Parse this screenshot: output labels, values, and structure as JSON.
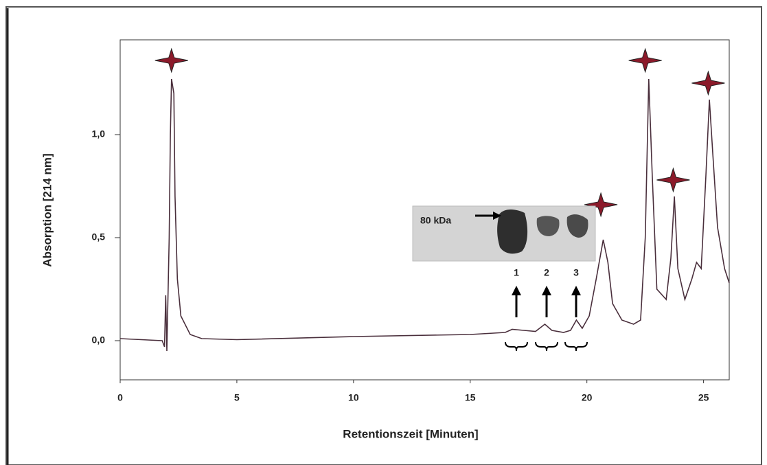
{
  "chart_data": {
    "type": "line",
    "x_label": "Retentionszeit [Minuten]",
    "y_label": "Absorption [214 nm]",
    "x": [
      0,
      1.8,
      1.9,
      1.95,
      2.0,
      2.1,
      2.15,
      2.2,
      2.3,
      2.35,
      2.45,
      2.6,
      3.0,
      3.5,
      5,
      10,
      15,
      16.5,
      16.8,
      17.3,
      17.8,
      18.2,
      18.5,
      19.0,
      19.3,
      19.55,
      19.8,
      20.1,
      20.4,
      20.7,
      20.9,
      21.1,
      21.5,
      22.0,
      22.3,
      22.5,
      22.65,
      22.8,
      23.0,
      23.4,
      23.6,
      23.75,
      23.9,
      24.2,
      24.5,
      24.7,
      24.9,
      25.1,
      25.25,
      25.4,
      25.6,
      25.9,
      26.1
    ],
    "values": [
      0.01,
      0.0,
      -0.03,
      0.22,
      -0.05,
      0.5,
      1.0,
      1.27,
      1.2,
      0.7,
      0.3,
      0.12,
      0.03,
      0.01,
      0.005,
      0.02,
      0.03,
      0.04,
      0.055,
      0.05,
      0.045,
      0.08,
      0.05,
      0.04,
      0.05,
      0.1,
      0.06,
      0.12,
      0.3,
      0.49,
      0.38,
      0.18,
      0.1,
      0.08,
      0.1,
      0.5,
      1.27,
      0.8,
      0.25,
      0.2,
      0.4,
      0.7,
      0.35,
      0.2,
      0.3,
      0.38,
      0.35,
      0.8,
      1.17,
      0.9,
      0.55,
      0.35,
      0.28
    ],
    "color": "#4a2f3c",
    "xlim": [
      0,
      26.1
    ],
    "ylim": [
      -0.19,
      1.46
    ],
    "xticks": [
      0,
      5,
      10,
      15,
      20,
      25
    ],
    "yticks": [
      {
        "value": 0,
        "label": "0,0"
      },
      {
        "value": 0.5,
        "label": "0,5"
      },
      {
        "value": 1,
        "label": "1,0"
      }
    ],
    "peak_markers": {
      "color": "#8b1a2a",
      "x": [
        2.2,
        20.6,
        22.5,
        23.7,
        25.2
      ],
      "y": [
        1.36,
        0.66,
        1.36,
        0.78,
        1.25
      ]
    },
    "inset": {
      "marker_label": "80 kDa",
      "lanes": [
        "1",
        "2",
        "3"
      ]
    }
  }
}
